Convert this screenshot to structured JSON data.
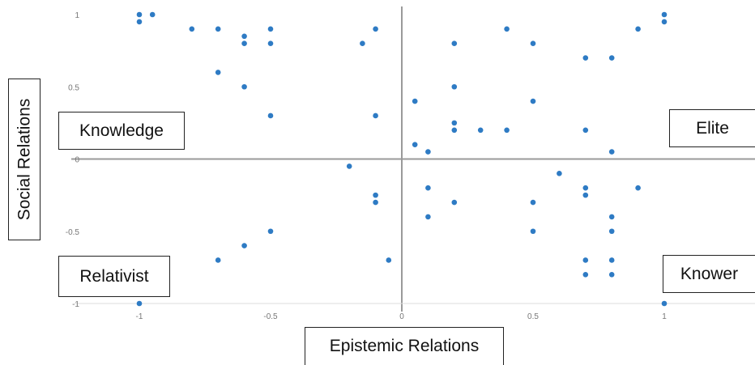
{
  "chart_data": {
    "type": "scatter",
    "xlabel": "Epistemic Relations",
    "ylabel": "Social Relations",
    "xlim": [
      -1,
      1
    ],
    "ylim": [
      -1,
      1
    ],
    "x_ticks": [
      "-1",
      "-0.5",
      "0",
      "0.5",
      "1"
    ],
    "y_ticks": [
      "1",
      "0.5",
      "0",
      "-0.5",
      "-1"
    ],
    "grid": false,
    "quadrant_labels": {
      "top_left": "Knowledge",
      "top_right": "Elite",
      "bottom_left": "Relativist",
      "bottom_right": "Knower"
    },
    "point_color": "#2e7bc4",
    "axis_color": "#9a9a9a",
    "points": [
      {
        "x": -1.0,
        "y": 1.0
      },
      {
        "x": -1.0,
        "y": 0.95
      },
      {
        "x": -0.95,
        "y": 1.0
      },
      {
        "x": -0.8,
        "y": 0.9
      },
      {
        "x": -0.7,
        "y": 0.9
      },
      {
        "x": -0.6,
        "y": 0.85
      },
      {
        "x": -0.6,
        "y": 0.8
      },
      {
        "x": -0.5,
        "y": 0.9
      },
      {
        "x": -0.5,
        "y": 0.8
      },
      {
        "x": -0.7,
        "y": 0.6
      },
      {
        "x": -0.6,
        "y": 0.5
      },
      {
        "x": -0.5,
        "y": 0.3
      },
      {
        "x": -0.15,
        "y": 0.8
      },
      {
        "x": -0.1,
        "y": 0.9
      },
      {
        "x": -0.1,
        "y": 0.3
      },
      {
        "x": 0.05,
        "y": 0.4
      },
      {
        "x": 0.05,
        "y": 0.1
      },
      {
        "x": 0.1,
        "y": 0.05
      },
      {
        "x": 0.2,
        "y": 0.8
      },
      {
        "x": 0.2,
        "y": 0.5
      },
      {
        "x": 0.2,
        "y": 0.25
      },
      {
        "x": 0.2,
        "y": 0.2
      },
      {
        "x": 0.3,
        "y": 0.2
      },
      {
        "x": 0.4,
        "y": 0.9
      },
      {
        "x": 0.4,
        "y": 0.2
      },
      {
        "x": 0.5,
        "y": 0.8
      },
      {
        "x": 0.5,
        "y": 0.4
      },
      {
        "x": 0.7,
        "y": 0.7
      },
      {
        "x": 0.7,
        "y": 0.2
      },
      {
        "x": 0.8,
        "y": 0.7
      },
      {
        "x": 0.8,
        "y": 0.05
      },
      {
        "x": 0.9,
        "y": 0.9
      },
      {
        "x": 1.0,
        "y": 1.0
      },
      {
        "x": 1.0,
        "y": 0.95
      },
      {
        "x": -0.2,
        "y": -0.05
      },
      {
        "x": -0.1,
        "y": -0.25
      },
      {
        "x": -0.1,
        "y": -0.3
      },
      {
        "x": -0.5,
        "y": -0.5
      },
      {
        "x": -0.6,
        "y": -0.6
      },
      {
        "x": -0.7,
        "y": -0.7
      },
      {
        "x": -1.0,
        "y": -1.0
      },
      {
        "x": -0.05,
        "y": -0.7
      },
      {
        "x": 0.1,
        "y": -0.2
      },
      {
        "x": 0.1,
        "y": -0.4
      },
      {
        "x": 0.2,
        "y": -0.3
      },
      {
        "x": 0.5,
        "y": -0.3
      },
      {
        "x": 0.5,
        "y": -0.5
      },
      {
        "x": 0.6,
        "y": -0.1
      },
      {
        "x": 0.7,
        "y": -0.2
      },
      {
        "x": 0.7,
        "y": -0.25
      },
      {
        "x": 0.7,
        "y": -0.7
      },
      {
        "x": 0.7,
        "y": -0.8
      },
      {
        "x": 0.8,
        "y": -0.4
      },
      {
        "x": 0.8,
        "y": -0.5
      },
      {
        "x": 0.8,
        "y": -0.7
      },
      {
        "x": 0.8,
        "y": -0.8
      },
      {
        "x": 0.9,
        "y": -0.2
      },
      {
        "x": 1.0,
        "y": -1.0
      }
    ]
  }
}
